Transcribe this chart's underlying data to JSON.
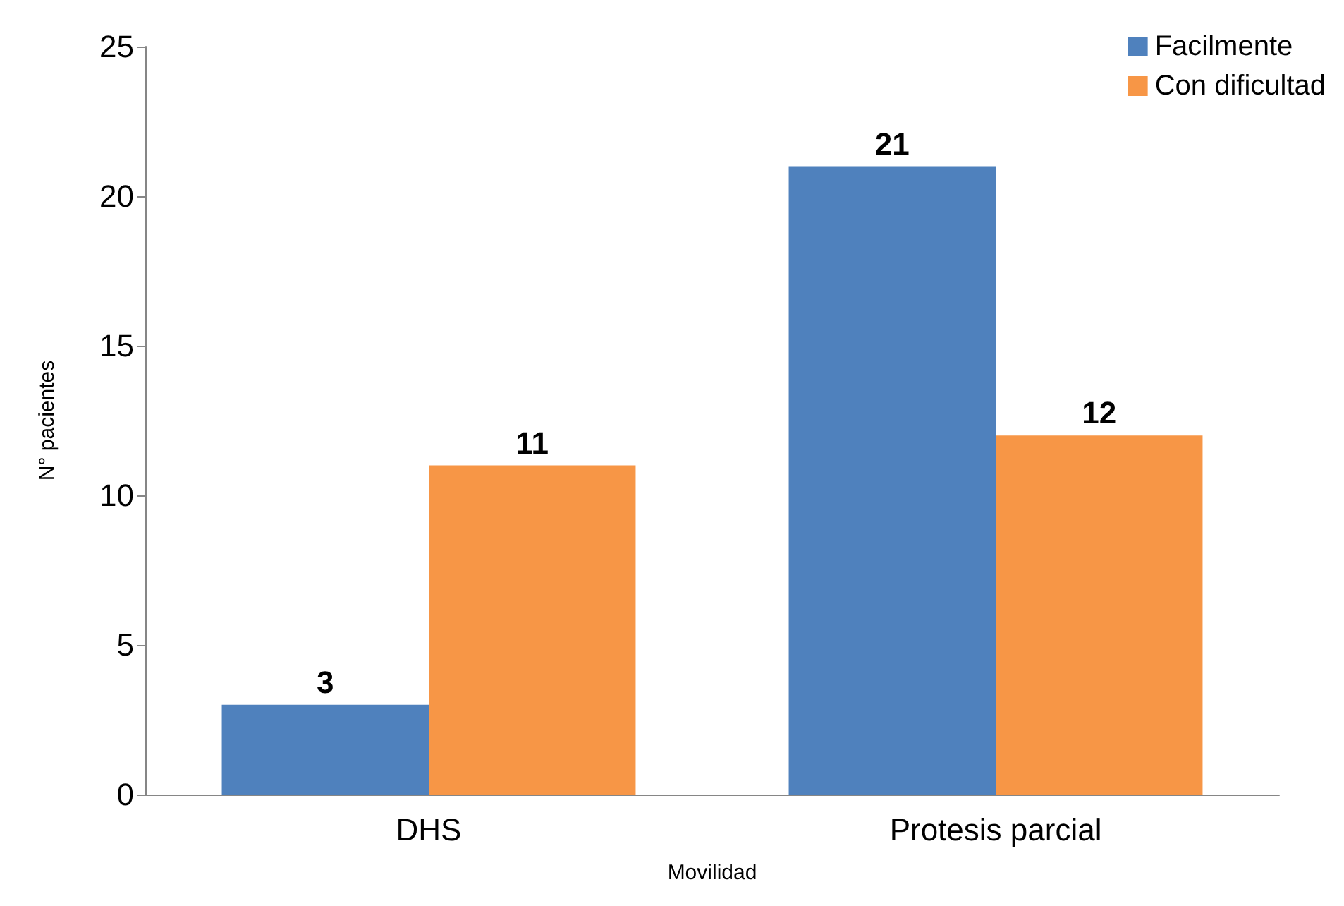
{
  "chart_data": {
    "type": "bar",
    "xlabel": "Movilidad",
    "ylabel": "N° pacientes",
    "categories": [
      "DHS",
      "Protesis parcial"
    ],
    "series": [
      {
        "name": "Facilmente",
        "color": "#4f81bd",
        "values": [
          3,
          21
        ]
      },
      {
        "name": "Con dificultad",
        "color": "#f79646",
        "values": [
          11,
          12
        ]
      }
    ],
    "ylim": [
      0,
      25
    ],
    "yticks": [
      0,
      5,
      10,
      15,
      20,
      25
    ],
    "grid": false,
    "legend": "top right",
    "data_labels": true
  }
}
